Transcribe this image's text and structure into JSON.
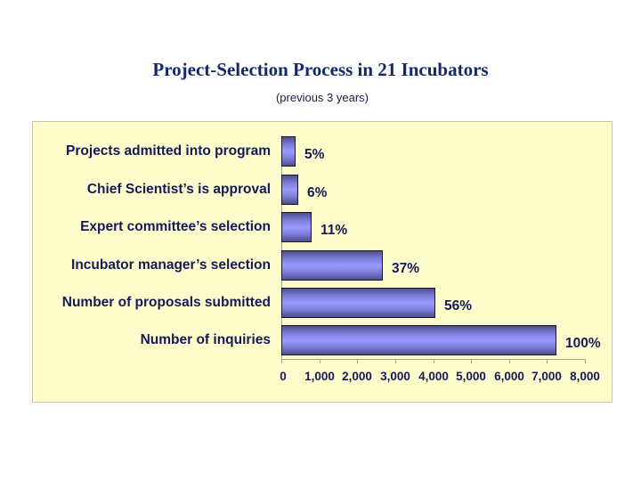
{
  "header": {
    "title": "Project-Selection Process in 21 Incubators",
    "subtitle": "(previous 3 years)"
  },
  "colors": {
    "title": "#13296b",
    "text": "#15195a",
    "plot_background": "#fffdcc",
    "bar_fill": "#9a9aff",
    "bar_edge": "#1a1a2a"
  },
  "chart_data": {
    "type": "bar",
    "orientation": "horizontal",
    "title": "Project-Selection Process in 21 Incubators",
    "subtitle": "(previous 3 years)",
    "categories": [
      "Projects admitted into program",
      "Chief Scientist’s is approval",
      "Expert committee’s selection",
      "Incubator manager’s selection",
      "Number of proposals submitted",
      "Number of inquiries"
    ],
    "values": [
      380,
      440,
      800,
      2680,
      4060,
      7250
    ],
    "data_labels": [
      "5%",
      "6%",
      "11%",
      "37%",
      "56%",
      "100%"
    ],
    "xlabel": "",
    "ylabel": "",
    "xlim": [
      0,
      8000
    ],
    "xticks": [
      "0",
      "1,000",
      "2,000",
      "3,000",
      "4,000",
      "5,000",
      "6,000",
      "7,000",
      "8,000"
    ],
    "grid": false,
    "legend": null
  }
}
